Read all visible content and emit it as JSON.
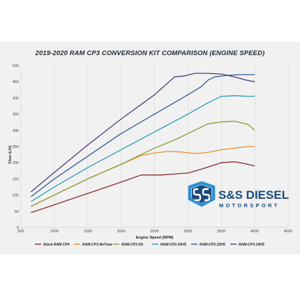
{
  "chart_data": {
    "type": "line",
    "title": "2019-2020 RAM CP3 CONVERSION KIT COMPARISON (ENGINE SPEED)",
    "xlabel": "Engine Speed (RPM)",
    "ylabel": "Flow (L/h)",
    "xlim": [
      500,
      4500
    ],
    "ylim": [
      0,
      500
    ],
    "xticks": [
      500,
      1000,
      1500,
      2000,
      2500,
      3000,
      3500,
      4000,
      4500
    ],
    "yticks": [
      0,
      50,
      100,
      150,
      200,
      250,
      300,
      350,
      400,
      450,
      500
    ],
    "grid": "vertical",
    "legend_position": "bottom",
    "series": [
      {
        "name": "Stock RAM CP4",
        "color": "#8a2a35",
        "x": [
          650,
          1000,
          1500,
          2000,
          2300,
          2600,
          2800,
          3000,
          3200,
          3400,
          3500,
          3700,
          3900,
          4000
        ],
        "y": [
          46,
          70,
          105,
          140,
          162,
          162,
          165,
          168,
          180,
          193,
          200,
          203,
          195,
          190
        ]
      },
      {
        "name": "RAM-CP3-NoTune",
        "color": "#e8922f",
        "x": [
          650,
          1000,
          1500,
          2000,
          2300,
          2500,
          2700,
          2900,
          3100,
          3300,
          3500,
          3700,
          3900,
          4000
        ],
        "y": [
          65,
          100,
          150,
          195,
          222,
          230,
          235,
          233,
          228,
          232,
          240,
          245,
          250,
          250
        ]
      },
      {
        "name": "RAM-CP3-SS",
        "color": "#8b9a30",
        "x": [
          650,
          1000,
          1500,
          2000,
          2300,
          2500,
          2800,
          3000,
          3300,
          3500,
          3700,
          3900,
          4000
        ],
        "y": [
          65,
          100,
          150,
          195,
          225,
          245,
          270,
          290,
          320,
          326,
          328,
          318,
          300
        ]
      },
      {
        "name": "RAM-CP3-10HS",
        "color": "#2a9ab5",
        "x": [
          650,
          1000,
          1500,
          2000,
          2500,
          3000,
          3300,
          3500,
          3700,
          3900,
          4000
        ],
        "y": [
          80,
          125,
          185,
          240,
          295,
          350,
          385,
          405,
          407,
          405,
          405
        ]
      },
      {
        "name": "RAM-CP3-12HS",
        "color": "#2d5d96",
        "x": [
          650,
          1000,
          1500,
          2000,
          2500,
          3000,
          3200,
          3300,
          3400,
          3600,
          3800,
          4000
        ],
        "y": [
          95,
          150,
          220,
          290,
          350,
          410,
          435,
          455,
          465,
          470,
          472,
          472
        ]
      },
      {
        "name": "RAM-CP3-14HS",
        "color": "#4e3a78",
        "x": [
          650,
          1000,
          1500,
          2000,
          2500,
          2800,
          2950,
          3100,
          3300,
          3500,
          3700,
          3850,
          4000
        ],
        "y": [
          110,
          170,
          255,
          335,
          410,
          465,
          468,
          476,
          476,
          474,
          465,
          456,
          450
        ]
      }
    ]
  },
  "logo": {
    "main_text": "S&S DIESEL",
    "sub_text": "MOTORSPORT",
    "emblem_letters": "SS",
    "colors": {
      "primary": "#1c4a7a",
      "accent": "#2f8fd0"
    }
  }
}
